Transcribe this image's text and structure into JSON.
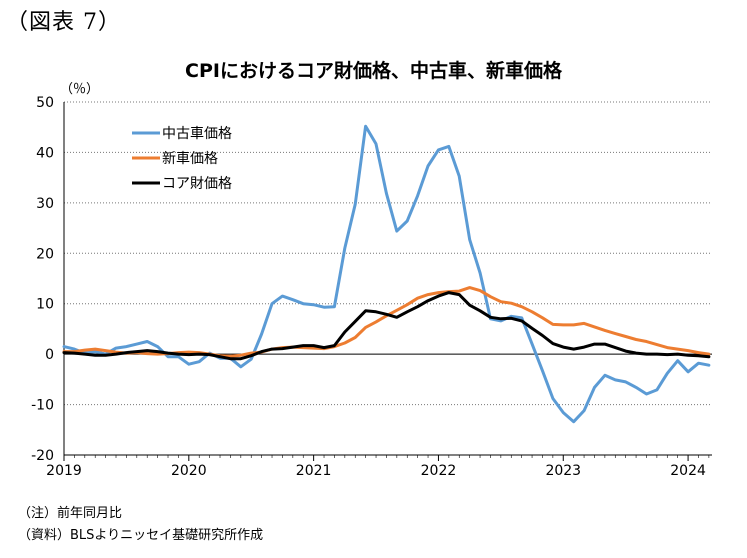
{
  "figure_label": "（図表 7）",
  "notes": {
    "note": "（注）前年同月比",
    "source": "（資料）BLSよりニッセイ基礎研究所作成"
  },
  "chart_data": {
    "type": "line",
    "title": "CPIにおけるコア財価格、中古車、新車価格",
    "ylabel": "（％）",
    "xlabel": "",
    "ylim": [
      -20,
      50
    ],
    "yticks": [
      50,
      40,
      30,
      20,
      10,
      0,
      -10,
      -20
    ],
    "xticks": [
      "2019",
      "2020",
      "2021",
      "2022",
      "2023",
      "2024"
    ],
    "x_start": "2019-01",
    "legend_position": "top-left",
    "grid": "horizontal dotted",
    "series": [
      {
        "name": "中古車価格",
        "color": "#5b9bd5",
        "values": [
          1.5,
          1.0,
          0.2,
          0.5,
          0.0,
          1.2,
          1.5,
          2.0,
          2.5,
          1.5,
          -0.5,
          -0.5,
          -2.0,
          -1.5,
          0.2,
          -0.8,
          -0.8,
          -2.5,
          -1.0,
          4.0,
          10.0,
          11.5,
          10.8,
          10.0,
          9.8,
          9.3,
          9.4,
          21.0,
          29.7,
          45.2,
          41.7,
          31.9,
          24.4,
          26.4,
          31.4,
          37.3,
          40.5,
          41.2,
          35.3,
          22.7,
          16.1,
          7.0,
          6.6,
          7.5,
          7.2,
          2.0,
          -3.3,
          -8.8,
          -11.6,
          -13.4,
          -11.2,
          -6.6,
          -4.2,
          -5.1,
          -5.5,
          -6.6,
          -7.9,
          -7.1,
          -3.8,
          -1.3,
          -3.5,
          -1.8,
          -2.2
        ]
      },
      {
        "name": "新車価格",
        "color": "#ed7d31",
        "values": [
          0.5,
          0.5,
          0.8,
          1.0,
          0.7,
          0.4,
          0.2,
          0.3,
          0.1,
          0.0,
          0.1,
          0.3,
          0.4,
          0.3,
          0.0,
          -0.3,
          -0.4,
          -0.2,
          0.2,
          0.4,
          1.0,
          1.3,
          1.4,
          1.3,
          1.2,
          1.1,
          1.5,
          2.2,
          3.3,
          5.3,
          6.4,
          7.6,
          8.7,
          9.8,
          11.1,
          11.8,
          12.2,
          12.4,
          12.5,
          13.2,
          12.6,
          11.4,
          10.4,
          10.1,
          9.4,
          8.4,
          7.2,
          5.9,
          5.8,
          5.8,
          6.1,
          5.4,
          4.7,
          4.1,
          3.5,
          2.9,
          2.5,
          1.9,
          1.3,
          1.0,
          0.7,
          0.3,
          0.0
        ]
      },
      {
        "name": "コア財価格",
        "color": "#000000",
        "values": [
          0.3,
          0.2,
          0.0,
          -0.2,
          -0.2,
          0.0,
          0.3,
          0.5,
          0.7,
          0.5,
          0.2,
          0.0,
          -0.1,
          0.0,
          -0.1,
          -0.5,
          -0.9,
          -0.9,
          -0.3,
          0.5,
          1.0,
          1.1,
          1.4,
          1.7,
          1.7,
          1.3,
          1.7,
          4.4,
          6.5,
          8.6,
          8.4,
          7.9,
          7.3,
          8.4,
          9.4,
          10.6,
          11.5,
          12.2,
          11.8,
          9.7,
          8.6,
          7.3,
          7.0,
          7.1,
          6.6,
          5.1,
          3.7,
          2.1,
          1.4,
          1.0,
          1.4,
          2.0,
          2.0,
          1.3,
          0.6,
          0.2,
          0.0,
          0.0,
          -0.1,
          0.0,
          -0.2,
          -0.3,
          -0.5
        ]
      }
    ]
  }
}
